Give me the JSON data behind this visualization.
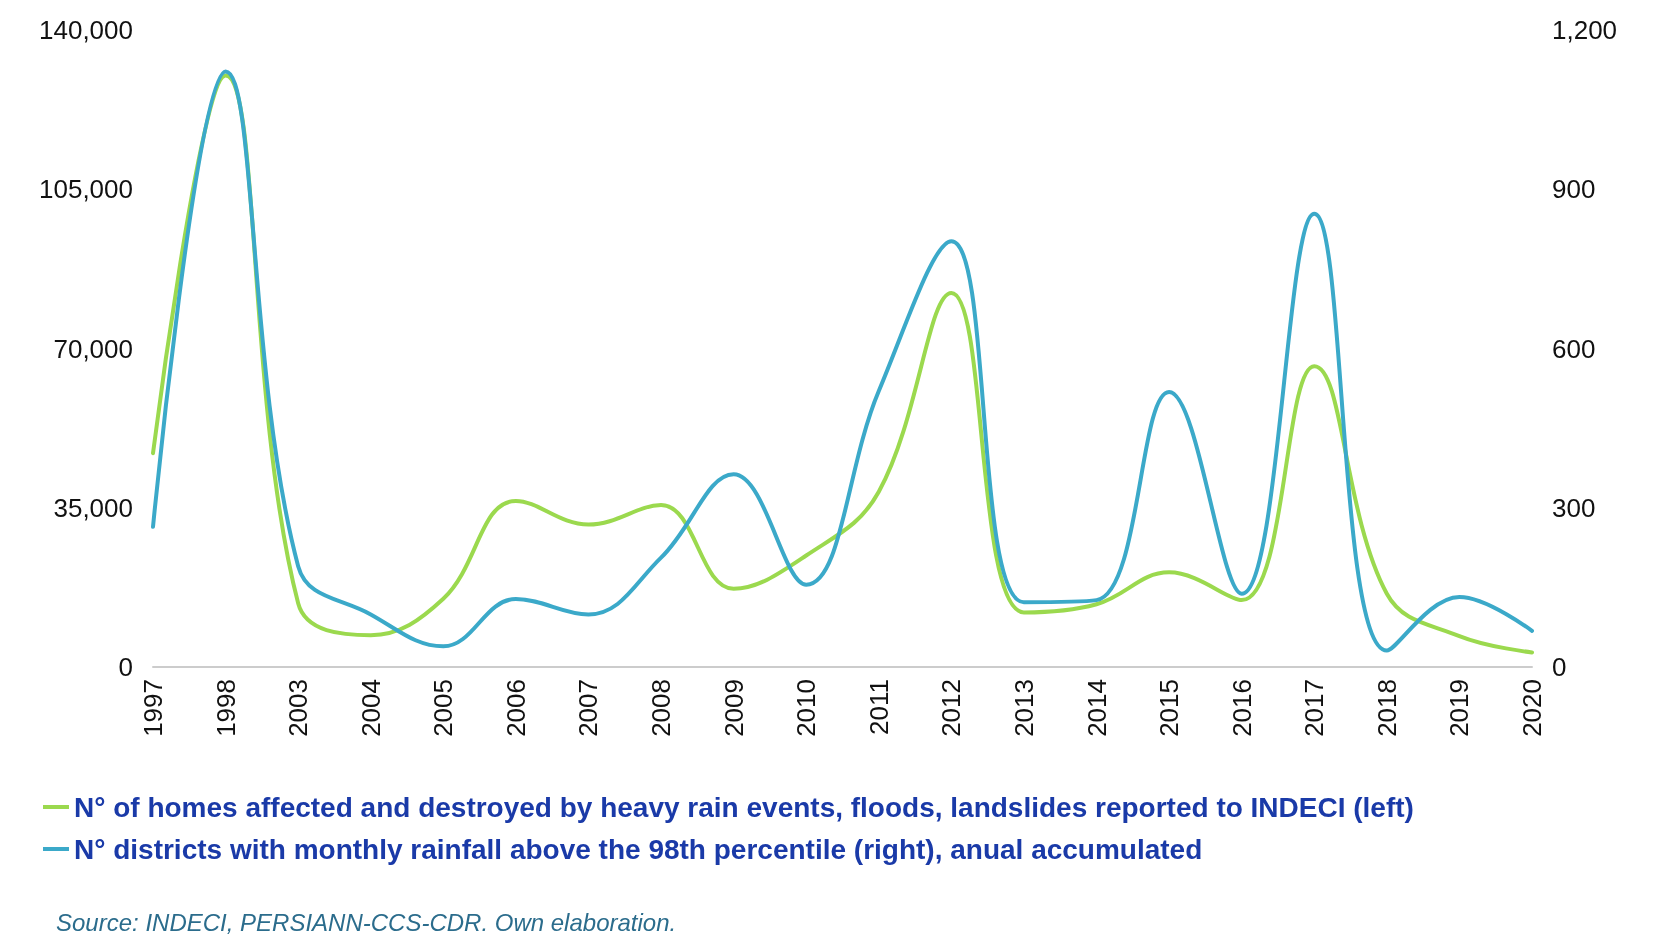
{
  "chart_data": {
    "type": "line",
    "categories": [
      "1997",
      "1998",
      "2003",
      "2004",
      "2005",
      "2006",
      "2007",
      "2008",
      "2009",
      "2010",
      "2011",
      "2012",
      "2013",
      "2014",
      "2015",
      "2016",
      "2017",
      "2018",
      "2019",
      "2020"
    ],
    "series": [
      {
        "name": "N° of homes affected and destroyed by heavy rain events, floods, landslides reported to INDECI (left)",
        "color": "#9bd94e",
        "values": [
          47000,
          130000,
          14000,
          7000,
          15000,
          36500,
          31300,
          35600,
          17200,
          24500,
          38500,
          82200,
          12000,
          13800,
          20800,
          14700,
          66100,
          16100,
          6800,
          3200
        ]
      },
      {
        "name": "N° districts with monthly rainfall above the 98th percentile (right), anual accumulated",
        "color": "#3ba9c9",
        "axis": "y2",
        "values": [
          264,
          1122,
          190,
          99,
          39,
          128,
          99,
          206,
          363,
          155,
          520,
          802,
          122,
          126,
          518,
          138,
          854,
          31,
          132,
          68
        ]
      }
    ],
    "ylim": [
      0,
      140000
    ],
    "yticks": [
      0,
      {
        "value": 35000,
        "label": "35,000"
      },
      {
        "value": 70000,
        "label": "70,000"
      },
      {
        "value": 105000,
        "label": "105,000"
      },
      {
        "value": 140000,
        "label": "140,000"
      }
    ],
    "y2lim": [
      0,
      1200
    ],
    "y2ticks": [
      0,
      300,
      600,
      900,
      {
        "value": 1200,
        "label": "1,200"
      }
    ],
    "grid": false,
    "legend": "bottom left",
    "marker": "none",
    "line_style": "solid",
    "annotations": [
      "Source: INDECI, PERSIANN-CCS-CDR. Own elaboration."
    ]
  }
}
